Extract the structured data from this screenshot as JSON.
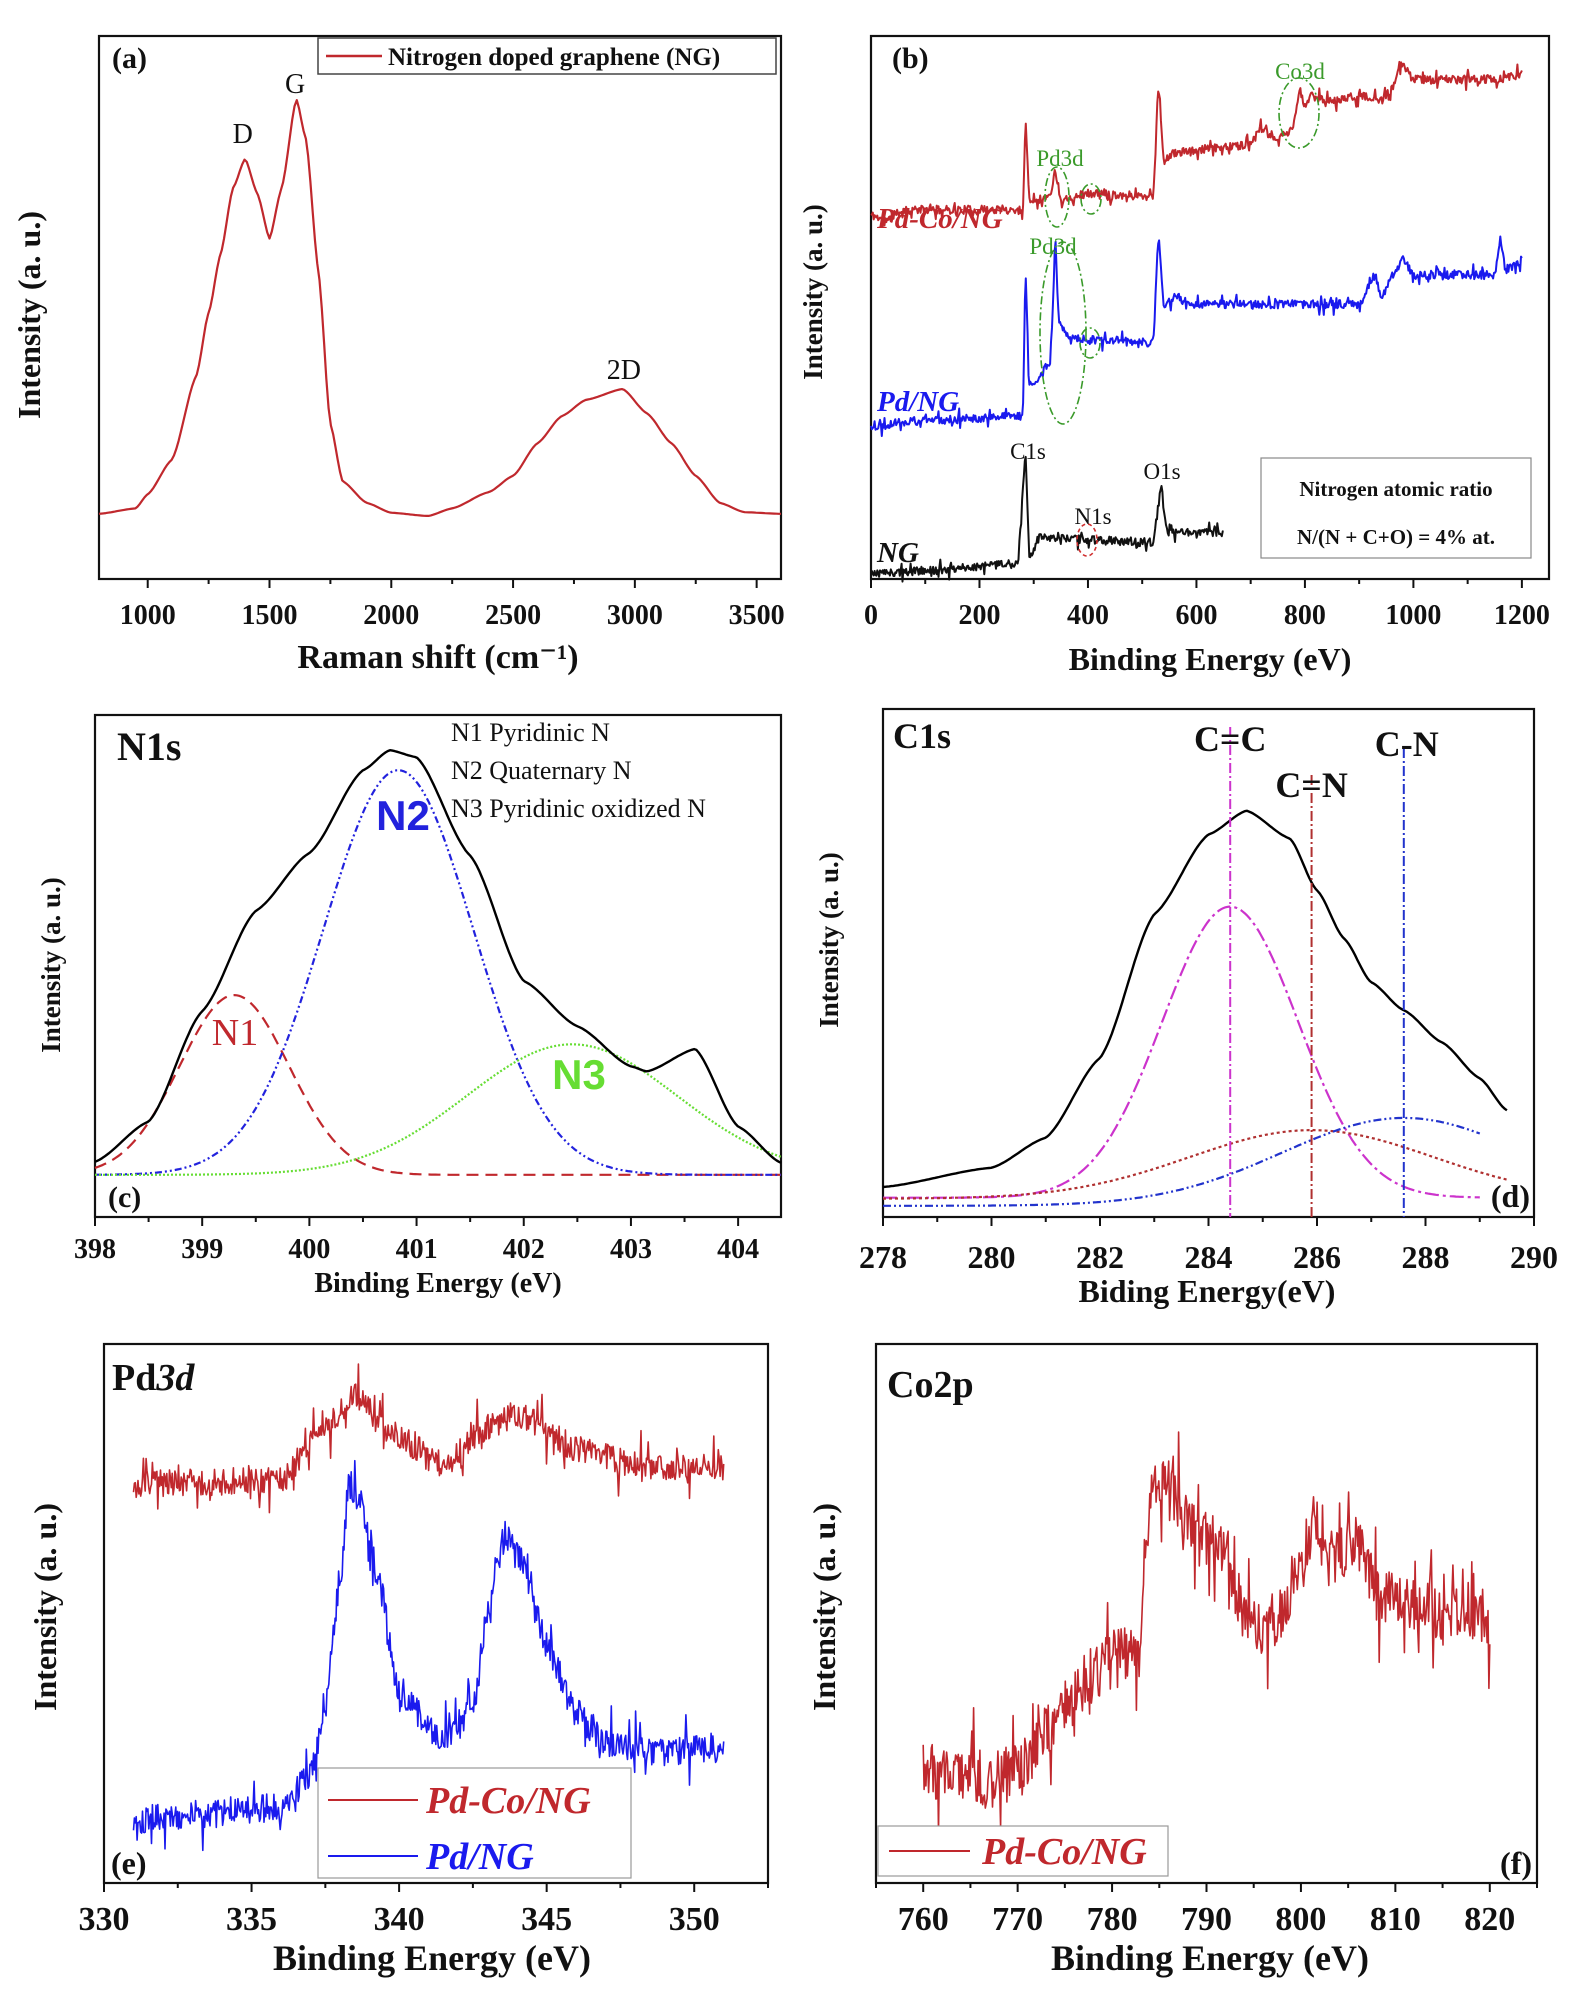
{
  "chart_data": [
    {
      "id": "a",
      "type": "line",
      "panel_label": "(a)",
      "xlabel": "Raman shift (cm⁻¹)",
      "ylabel": "Intensity (a. u.)",
      "xlim": [
        800,
        3600
      ],
      "ylim": [
        0,
        100
      ],
      "xticks": [
        "1000",
        "1500",
        "2000",
        "2500",
        "3000",
        "3500"
      ],
      "grid": false,
      "legend_position": "top-right",
      "legend": [
        {
          "name": "Nitrogen doped graphene (NG)",
          "color": "#c0282d"
        }
      ],
      "annotations": [
        "D",
        "G",
        "2D"
      ],
      "series": [
        {
          "name": "Nitrogen doped graphene (NG)",
          "color": "#c0282d",
          "points": [
            [
              800,
              12
            ],
            [
              950,
              13
            ],
            [
              1000,
              15.6
            ],
            [
              1100,
              22
            ],
            [
              1200,
              37.5
            ],
            [
              1250,
              49
            ],
            [
              1300,
              60
            ],
            [
              1350,
              72
            ],
            [
              1400,
              77.4
            ],
            [
              1450,
              71
            ],
            [
              1500,
              62.7
            ],
            [
              1550,
              72
            ],
            [
              1610,
              88.4
            ],
            [
              1650,
              81
            ],
            [
              1700,
              57
            ],
            [
              1750,
              28.5
            ],
            [
              1800,
              18
            ],
            [
              1900,
              14
            ],
            [
              2000,
              12.2
            ],
            [
              2150,
              11.6
            ],
            [
              2250,
              13
            ],
            [
              2400,
              16
            ],
            [
              2500,
              19
            ],
            [
              2600,
              25
            ],
            [
              2700,
              30
            ],
            [
              2800,
              33
            ],
            [
              2950,
              35
            ],
            [
              3050,
              30.5
            ],
            [
              3150,
              25
            ],
            [
              3250,
              19
            ],
            [
              3350,
              14
            ],
            [
              3450,
              12.3
            ],
            [
              3600,
              12
            ]
          ]
        }
      ]
    },
    {
      "id": "b",
      "type": "line",
      "panel_label": "(b)",
      "xlabel": "Binding Energy (eV)",
      "ylabel": "Intensity (a. u.)",
      "xlim": [
        0,
        1250
      ],
      "ylim": [
        0,
        100
      ],
      "xticks": [
        "0",
        "200",
        "400",
        "600",
        "800",
        "1000",
        "1200"
      ],
      "grid": false,
      "annotations": {
        "pd3d_top": "Pd3d",
        "pd3d_mid": "Pd3d",
        "co3d": "Co3d",
        "c1s": "C1s",
        "n1s": "N1s",
        "o1s": "O1s"
      },
      "inset": {
        "title": "Nitrogen atomic ratio",
        "value": "N/(N + C+O) = 4% at."
      },
      "highlight_color": "#3a9a2a",
      "series": [
        {
          "name": "Pd-Co/NG",
          "color": "#c0282d",
          "points": [
            [
              0,
              67
            ],
            [
              30,
              66
            ],
            [
              60,
              68
            ],
            [
              280,
              68
            ],
            [
              285,
              84
            ],
            [
              292,
              70
            ],
            [
              320,
              70
            ],
            [
              330,
              71
            ],
            [
              340,
              75
            ],
            [
              350,
              70
            ],
            [
              400,
              71
            ],
            [
              520,
              70.5
            ],
            [
              530,
              91
            ],
            [
              540,
              77
            ],
            [
              560,
              78.5
            ],
            [
              700,
              80
            ],
            [
              720,
              83
            ],
            [
              740,
              81
            ],
            [
              770,
              82
            ],
            [
              780,
              84
            ],
            [
              790,
              90
            ],
            [
              800,
              87
            ],
            [
              810,
              89
            ],
            [
              850,
              88
            ],
            [
              900,
              89
            ],
            [
              940,
              88
            ],
            [
              960,
              90
            ],
            [
              980,
              95
            ],
            [
              1000,
              92
            ],
            [
              1100,
              92
            ],
            [
              1160,
              92
            ],
            [
              1200,
              93
            ]
          ]
        },
        {
          "name": "Pd/NG",
          "color": "#1a1aee",
          "points": [
            [
              0,
              28
            ],
            [
              60,
              29
            ],
            [
              280,
              30
            ],
            [
              285,
              56
            ],
            [
              292,
              36
            ],
            [
              310,
              37
            ],
            [
              330,
              40
            ],
            [
              340,
              61
            ],
            [
              346,
              48
            ],
            [
              360,
              45
            ],
            [
              400,
              44
            ],
            [
              520,
              43.5
            ],
            [
              530,
              63
            ],
            [
              540,
              50
            ],
            [
              560,
              52
            ],
            [
              600,
              50.6
            ],
            [
              900,
              50.6
            ],
            [
              930,
              56
            ],
            [
              940,
              52
            ],
            [
              970,
              57
            ],
            [
              980,
              59
            ],
            [
              1000,
              56
            ],
            [
              1150,
              56
            ],
            [
              1160,
              62
            ],
            [
              1170,
              57
            ],
            [
              1200,
              58.7
            ]
          ]
        },
        {
          "name": "NG",
          "color": "#111111",
          "points": [
            [
              0,
              1
            ],
            [
              100,
              1.5
            ],
            [
              270,
              2.8
            ],
            [
              285,
              22.6
            ],
            [
              292,
              4
            ],
            [
              310,
              7.5
            ],
            [
              520,
              6.8
            ],
            [
              535,
              16.8
            ],
            [
              545,
              8.6
            ],
            [
              650,
              8.6
            ]
          ]
        }
      ]
    },
    {
      "id": "c",
      "type": "line",
      "panel_label": "(c)",
      "title": "N1s",
      "xlabel": "Binding Energy (eV)",
      "ylabel": "Intensity (a. u.)",
      "xlim": [
        398,
        404.4
      ],
      "ylim": [
        0,
        100
      ],
      "xticks": [
        "398",
        "399",
        "400",
        "401",
        "402",
        "403",
        "404"
      ],
      "grid": false,
      "legend_lines": [
        "N1 Pyridinic N",
        "N2 Quaternary N",
        "N3 Pyridinic oxidized N"
      ],
      "total": {
        "color": "#000000",
        "points": [
          [
            398,
            11
          ],
          [
            398.5,
            19
          ],
          [
            399,
            41
          ],
          [
            399.5,
            61
          ],
          [
            400,
            72.5
          ],
          [
            400.5,
            89
          ],
          [
            400.75,
            93
          ],
          [
            401,
            91.6
          ],
          [
            401.5,
            72
          ],
          [
            402,
            47
          ],
          [
            402.5,
            38
          ],
          [
            403,
            30
          ],
          [
            403.15,
            29
          ],
          [
            403.6,
            33.5
          ],
          [
            404,
            18
          ],
          [
            404.4,
            10.8
          ]
        ]
      },
      "components": [
        {
          "label": "N1",
          "color": "#c0282d",
          "center": 399.3,
          "amp": 35.8,
          "sigma": 0.51,
          "baseline": 8.4
        },
        {
          "label": "N2",
          "color": "#2222dd",
          "center": 400.83,
          "amp": 80.6,
          "sigma": 0.7,
          "baseline": 8.4
        },
        {
          "label": "N3",
          "color": "#66dd33",
          "center": 402.45,
          "amp": 26,
          "sigma": 0.98,
          "baseline": 8.4
        }
      ]
    },
    {
      "id": "d",
      "type": "line",
      "panel_label": "(d)",
      "title": "C1s",
      "xlabel": "Biding Energy(eV)",
      "ylabel": "Intensity (a. u.)",
      "xlim": [
        278,
        290
      ],
      "ylim": [
        0,
        100
      ],
      "xticks": [
        "278",
        "280",
        "282",
        "284",
        "286",
        "288",
        "290"
      ],
      "grid": false,
      "total": {
        "color": "#000000",
        "points": [
          [
            278,
            5.9
          ],
          [
            280,
            9.7
          ],
          [
            281,
            15.6
          ],
          [
            282,
            31.3
          ],
          [
            283,
            59.6
          ],
          [
            284,
            75.3
          ],
          [
            284.7,
            80
          ],
          [
            285.5,
            74.5
          ],
          [
            286,
            64.3
          ],
          [
            286.5,
            54.8
          ],
          [
            287,
            46.2
          ],
          [
            287.6,
            40.7
          ],
          [
            288.3,
            34.4
          ],
          [
            289,
            27.3
          ],
          [
            289.5,
            21
          ]
        ]
      },
      "components": [
        {
          "label": "C=C",
          "color": "#cc33cc",
          "center": 284.4,
          "amp": 57.3,
          "sigma": 1.25,
          "baseline": 3.8,
          "range": [
            278,
            289
          ]
        },
        {
          "label": "C=N",
          "color": "#b03030",
          "center": 285.9,
          "amp": 13.5,
          "sigma": 2.25,
          "baseline": 3.6,
          "range": [
            278,
            289.5
          ]
        },
        {
          "label": "C-N",
          "color": "#2233cc",
          "center": 287.6,
          "amp": 17.3,
          "sigma": 2.24,
          "baseline": 2.2,
          "range": [
            278,
            289
          ]
        }
      ]
    },
    {
      "id": "e",
      "type": "line",
      "panel_label": "(e)",
      "title": "Pd",
      "title_italic": "3d",
      "xlabel": "Binding Energy (eV)",
      "ylabel": "Intensity (a. u.)",
      "xlim": [
        330,
        352.5
      ],
      "ylim": [
        0,
        100
      ],
      "xticks": [
        "330",
        "335",
        "340",
        "345",
        "350"
      ],
      "grid": false,
      "legend_position": "bottom-center",
      "legend": [
        {
          "name": "Pd-Co/NG",
          "color": "#c0282d"
        },
        {
          "name": "Pd/NG",
          "color": "#1a1aee"
        }
      ],
      "series": [
        {
          "name": "Pd-Co/NG",
          "color": "#c0282d",
          "points": [
            [
              331,
              74
            ],
            [
              336,
              74.8
            ],
            [
              337.5,
              84
            ],
            [
              338.5,
              91
            ],
            [
              339.5,
              84.6
            ],
            [
              341.5,
              77.5
            ],
            [
              343,
              84.6
            ],
            [
              344,
              87
            ],
            [
              346,
              80.7
            ],
            [
              348,
              77.5
            ],
            [
              351,
              77
            ]
          ]
        },
        {
          "name": "Pd/NG",
          "color": "#1a1aee",
          "points": [
            [
              331,
              11.8
            ],
            [
              336,
              14
            ],
            [
              337,
              20.5
            ],
            [
              337.5,
              33
            ],
            [
              338,
              56.7
            ],
            [
              338.3,
              74
            ],
            [
              338.7,
              71
            ],
            [
              339.3,
              56.7
            ],
            [
              340,
              34.6
            ],
            [
              341.5,
              26.8
            ],
            [
              342.5,
              31.5
            ],
            [
              343,
              50.4
            ],
            [
              343.6,
              64.6
            ],
            [
              344.3,
              59
            ],
            [
              345,
              44
            ],
            [
              346,
              31.5
            ],
            [
              347,
              26
            ],
            [
              349,
              24.4
            ],
            [
              351,
              25.2
            ]
          ]
        }
      ]
    },
    {
      "id": "f",
      "type": "line",
      "panel_label": "(f)",
      "title": "Co2p",
      "xlabel": "Binding Energy (eV)",
      "ylabel": "Intensity (a. u.)",
      "xlim": [
        755,
        825
      ],
      "ylim": [
        0,
        100
      ],
      "xticks": [
        "760",
        "770",
        "780",
        "790",
        "800",
        "810",
        "820"
      ],
      "grid": false,
      "legend_position": "bottom-left",
      "legend": [
        {
          "name": "Pd-Co/NG",
          "color": "#c0282d"
        }
      ],
      "series": [
        {
          "name": "Pd-Co/NG",
          "color": "#c0282d",
          "points": [
            [
              760,
              20.6
            ],
            [
              764,
              20.6
            ],
            [
              767,
              19
            ],
            [
              770,
              20.6
            ],
            [
              772,
              25.3
            ],
            [
              775,
              33.2
            ],
            [
              778,
              38.7
            ],
            [
              781,
              42.7
            ],
            [
              783,
              41
            ],
            [
              783.5,
              60.9
            ],
            [
              784.5,
              74.3
            ],
            [
              786,
              76.8
            ],
            [
              788,
              67.3
            ],
            [
              790,
              63.4
            ],
            [
              792,
              61.8
            ],
            [
              794,
              49.2
            ],
            [
              796,
              47.6
            ],
            [
              798,
              50
            ],
            [
              800,
              60.2
            ],
            [
              801.5,
              67.3
            ],
            [
              803,
              60
            ],
            [
              806,
              63.4
            ],
            [
              808,
              53.8
            ],
            [
              812,
              52.2
            ],
            [
              815,
              49
            ],
            [
              818,
              50.6
            ],
            [
              820,
              49
            ]
          ]
        }
      ]
    }
  ]
}
